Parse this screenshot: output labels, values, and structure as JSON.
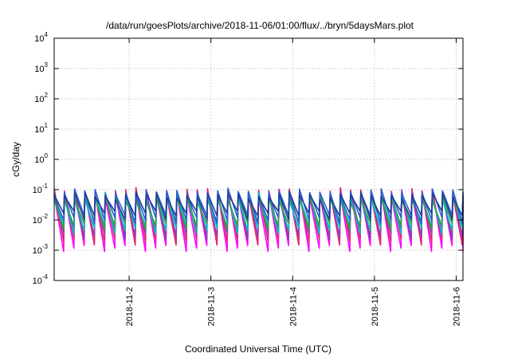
{
  "chart_data": {
    "type": "line",
    "title": "/data/run/goesPlots/archive/2018-11-06/01:00/flux/../bryn/5daysMars.plot",
    "xlabel": "Coordinated Universal Time (UTC)",
    "ylabel": "cGy/day",
    "x_range": [
      "2018-11-01T02:00",
      "2018-11-06T02:00"
    ],
    "ylim": [
      0.0001,
      10000
    ],
    "y_scale": "log",
    "grid": true,
    "legend": "none",
    "x_ticks": [
      {
        "date": "2018-11-02T00:00",
        "label": "2018-11-2"
      },
      {
        "date": "2018-11-03T00:00",
        "label": "2018-11-3"
      },
      {
        "date": "2018-11-04T00:00",
        "label": "2018-11-4"
      },
      {
        "date": "2018-11-05T00:00",
        "label": "2018-11-5"
      },
      {
        "date": "2018-11-06T00:00",
        "label": "2018-11-6"
      }
    ],
    "y_ticks": [
      {
        "value": 0.0001,
        "base": "10",
        "exp": "-4"
      },
      {
        "value": 0.001,
        "base": "10",
        "exp": "-3"
      },
      {
        "value": 0.01,
        "base": "10",
        "exp": "-2"
      },
      {
        "value": 0.1,
        "base": "10",
        "exp": "-1"
      },
      {
        "value": 1,
        "base": "10",
        "exp": "0"
      },
      {
        "value": 10,
        "base": "10",
        "exp": "1"
      },
      {
        "value": 100,
        "base": "10",
        "exp": "2"
      },
      {
        "value": 1000,
        "base": "10",
        "exp": "3"
      },
      {
        "value": 10000,
        "base": "10",
        "exp": "4"
      }
    ],
    "sawtooth_period_hours": 3,
    "series": [
      {
        "color": "#ff00ff",
        "peak": 0.09,
        "trough": 0.0013
      },
      {
        "color": "#e0286e",
        "peak": 0.1,
        "trough": 0.0021
      },
      {
        "color": "#8a3fb5",
        "peak": 0.085,
        "trough": 0.0032
      },
      {
        "color": "#00bfbf",
        "peak": 0.07,
        "trough": 0.005
      },
      {
        "color": "#30a050",
        "peak": 0.06,
        "trough": 0.007
      },
      {
        "color": "#2a5fd0",
        "peak": 0.095,
        "trough": 0.011
      },
      {
        "color": "#1f3c9c",
        "peak": 0.075,
        "trough": 0.015
      }
    ]
  }
}
